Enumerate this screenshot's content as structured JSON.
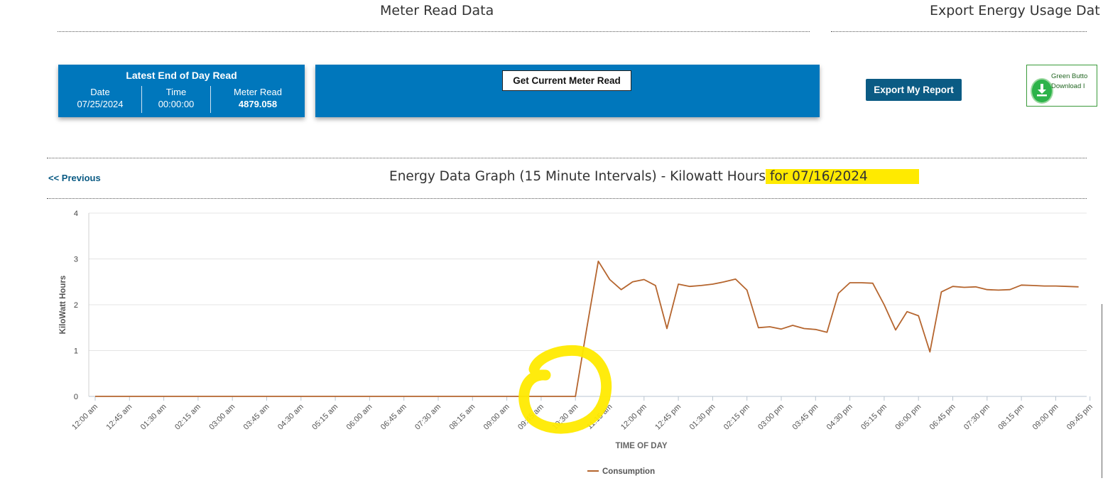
{
  "headers": {
    "meter_read": "Meter Read Data",
    "export": "Export Energy Usage Dat"
  },
  "end_of_day": {
    "title": "Latest End of Day Read",
    "date_label": "Date",
    "date_value": "07/25/2024",
    "time_label": "Time",
    "time_value": "00:00:00",
    "read_label": "Meter Read",
    "read_value": "4879.058"
  },
  "buttons": {
    "get_meter_read": "Get Current Meter Read",
    "export_report": "Export My Report",
    "green_button_line1": "Green Butto",
    "green_button_line2": "Download I"
  },
  "nav": {
    "previous": "<< Previous"
  },
  "graph": {
    "title_main": "Energy Data Graph (15 Minute Intervals) - Kilowatt Hours",
    "title_date": " for 07/16/2024"
  },
  "colors": {
    "card_blue": "#0077bc",
    "export_blue": "#0b5b84",
    "line": "#b5652e",
    "highlight": "#ffea00"
  },
  "chart_data": {
    "type": "line",
    "xlabel": "TIME OF DAY",
    "ylabel": "KiloWatt Hours",
    "ylim": [
      0,
      4
    ],
    "yticks": [
      0,
      1,
      2,
      3,
      4
    ],
    "grid": true,
    "legend": "bottom",
    "x_tick_labels": [
      "12:00 am",
      "12:45 am",
      "01:30 am",
      "02:15 am",
      "03:00 am",
      "03:45 am",
      "04:30 am",
      "05:15 am",
      "06:00 am",
      "06:45 am",
      "07:30 am",
      "08:15 am",
      "09:00 am",
      "09:45 am",
      "10:30 am",
      "11:15 am",
      "12:00 pm",
      "12:45 pm",
      "01:30 pm",
      "02:15 pm",
      "03:00 pm",
      "03:45 pm",
      "04:30 pm",
      "05:15 pm",
      "06:00 pm",
      "06:45 pm",
      "07:30 pm",
      "08:15 pm",
      "09:00 pm",
      "09:45 pm"
    ],
    "x_start_interval": 0,
    "series": [
      {
        "name": "Consumption",
        "color": "#b5652e",
        "values": [
          0,
          0,
          0,
          0,
          0,
          0,
          0,
          0,
          0,
          0,
          0,
          0,
          0,
          0,
          0,
          0,
          0,
          0,
          0,
          0,
          0,
          0,
          0,
          0,
          0,
          0,
          0,
          0,
          0,
          0,
          0,
          0,
          0,
          0,
          0,
          0,
          0,
          0,
          0,
          0,
          0,
          0,
          0,
          1.5,
          2.95,
          2.55,
          2.33,
          2.5,
          2.55,
          2.42,
          1.48,
          2.45,
          2.4,
          2.42,
          2.45,
          2.5,
          2.56,
          2.32,
          1.5,
          1.52,
          1.47,
          1.55,
          1.48,
          1.46,
          1.4,
          2.25,
          2.48,
          2.48,
          2.47,
          2.0,
          1.45,
          1.85,
          1.76,
          0.97,
          2.28,
          2.4,
          2.38,
          2.39,
          2.33,
          2.32,
          2.33,
          2.43,
          2.42,
          2.41,
          2.41,
          2.4,
          2.39
        ]
      }
    ]
  }
}
